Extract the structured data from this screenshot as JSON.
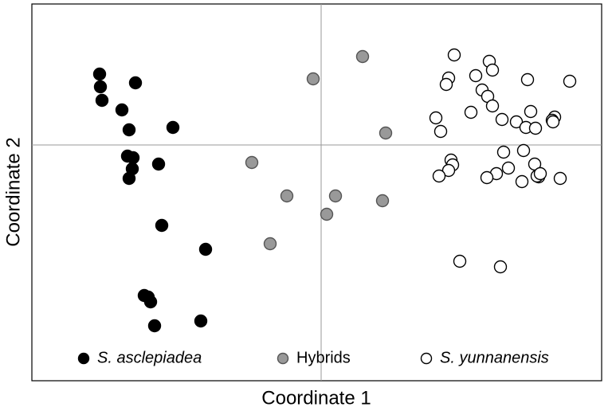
{
  "chart_data": {
    "type": "scatter",
    "xlabel": "Coordinate 1",
    "ylabel": "Coordinate 2",
    "xlim": [
      -3.63,
      3.52
    ],
    "ylim": [
      -2.96,
      1.77
    ],
    "crosshair": [
      0,
      0
    ],
    "legend_loc": "lower center",
    "series": [
      {
        "name": "S. asclepiadea",
        "italic": true,
        "color": "#000000",
        "edgecolor": "#000000",
        "x": [
          -2.78,
          -2.77,
          -2.75,
          -2.33,
          -2.5,
          -2.41,
          -1.86,
          -2.43,
          -2.36,
          -2.37,
          -2.04,
          -2.41,
          -2.0,
          -1.45,
          -2.22,
          -2.17,
          -2.14,
          -2.09,
          -1.51
        ],
        "values": [
          0.89,
          0.73,
          0.56,
          0.78,
          0.44,
          0.19,
          0.22,
          -0.14,
          -0.16,
          -0.3,
          -0.24,
          -0.42,
          -1.01,
          -1.31,
          -1.89,
          -1.91,
          -1.97,
          -2.27,
          -2.21
        ]
      },
      {
        "name": "Hybrids",
        "italic": false,
        "color": "#999999",
        "edgecolor": "#555555",
        "x": [
          0.52,
          -0.1,
          0.81,
          -0.87,
          -0.43,
          0.18,
          0.07,
          0.77,
          -0.64
        ],
        "values": [
          1.11,
          0.83,
          0.15,
          -0.22,
          -0.64,
          -0.64,
          -0.87,
          -0.7,
          -1.24
        ]
      },
      {
        "name": "S. yunnanensis",
        "italic": true,
        "color": "#ffffff",
        "edgecolor": "#000000",
        "x": [
          1.67,
          2.11,
          2.15,
          1.6,
          1.94,
          1.57,
          2.59,
          3.12,
          2.02,
          2.09,
          2.15,
          1.88,
          1.44,
          2.27,
          2.63,
          2.45,
          2.57,
          2.69,
          2.93,
          2.9,
          2.91,
          1.5,
          2.29,
          2.54,
          1.63,
          1.65,
          1.6,
          1.48,
          2.35,
          2.68,
          2.2,
          2.08,
          2.73,
          2.71,
          2.75,
          3.0,
          2.52,
          1.74,
          2.25
        ],
        "values": [
          1.13,
          1.05,
          0.94,
          0.84,
          0.87,
          0.76,
          0.82,
          0.8,
          0.69,
          0.61,
          0.49,
          0.41,
          0.34,
          0.32,
          0.42,
          0.29,
          0.22,
          0.21,
          0.35,
          0.31,
          0.29,
          0.17,
          -0.09,
          -0.07,
          -0.19,
          -0.25,
          -0.32,
          -0.39,
          -0.29,
          -0.24,
          -0.36,
          -0.41,
          -0.4,
          -0.39,
          -0.36,
          -0.42,
          -0.46,
          -1.46,
          -1.53
        ]
      }
    ]
  }
}
